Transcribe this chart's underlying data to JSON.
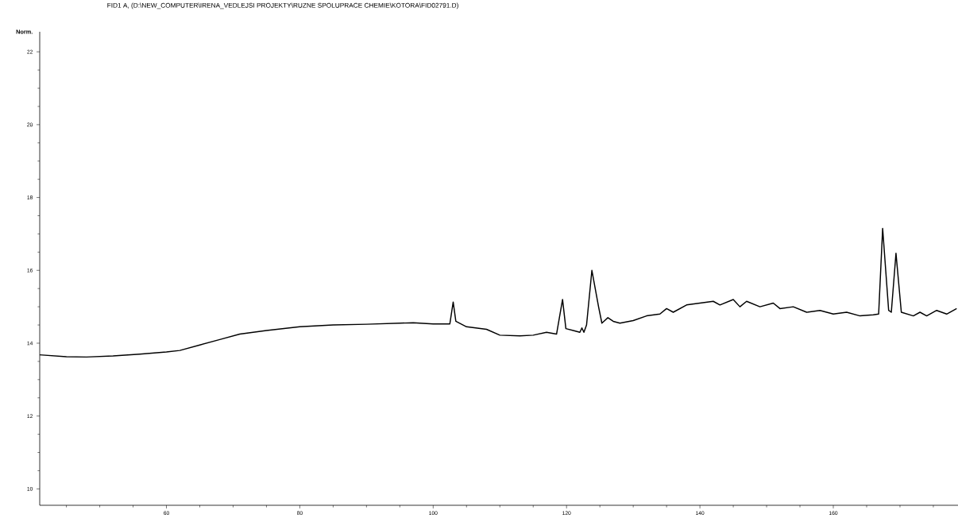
{
  "chart_data": {
    "type": "line",
    "title": "FID1 A,  (D:\\NEW_COMPUTER\\IRENA_VEDLEJSI PROJEKTY\\RUZNE SPOLUPRACE CHEMIE\\KOTORA\\FID02791.D)",
    "ylabel": "Norm.",
    "xlim": [
      41,
      178.7
    ],
    "ylim": [
      9.55,
      22.55
    ],
    "xticks": [
      {
        "value": 45,
        "label": null
      },
      {
        "value": 50,
        "label": null
      },
      {
        "value": 55,
        "label": null
      },
      60,
      {
        "value": 65,
        "label": null
      },
      {
        "value": 70,
        "label": null
      },
      {
        "value": 75,
        "label": null
      },
      80,
      {
        "value": 85,
        "label": null
      },
      {
        "value": 90,
        "label": null
      },
      {
        "value": 95,
        "label": null
      },
      100,
      {
        "value": 105,
        "label": null
      },
      {
        "value": 110,
        "label": null
      },
      {
        "value": 115,
        "label": null
      },
      120,
      {
        "value": 125,
        "label": null
      },
      {
        "value": 130,
        "label": null
      },
      {
        "value": 135,
        "label": null
      },
      140,
      {
        "value": 145,
        "label": null
      },
      {
        "value": 150,
        "label": null
      },
      {
        "value": 155,
        "label": null
      },
      160,
      {
        "value": 165,
        "label": null
      },
      {
        "value": 170,
        "label": null
      },
      {
        "value": 175,
        "label": null
      }
    ],
    "yticks": [
      10,
      {
        "value": 10.5,
        "label": null
      },
      {
        "value": 11,
        "label": null
      },
      {
        "value": 11.5,
        "label": null
      },
      12,
      {
        "value": 12.5,
        "label": null
      },
      {
        "value": 13,
        "label": null
      },
      {
        "value": 13.5,
        "label": null
      },
      14,
      {
        "value": 14.5,
        "label": null
      },
      {
        "value": 15,
        "label": null
      },
      {
        "value": 15.5,
        "label": null
      },
      16,
      {
        "value": 16.5,
        "label": null
      },
      {
        "value": 17,
        "label": null
      },
      {
        "value": 17.5,
        "label": null
      },
      18,
      {
        "value": 18.5,
        "label": null
      },
      {
        "value": 19,
        "label": null
      },
      {
        "value": 19.5,
        "label": null
      },
      20,
      {
        "value": 20.5,
        "label": null
      },
      {
        "value": 21,
        "label": null
      },
      {
        "value": 21.5,
        "label": null
      },
      22
    ],
    "grid": false,
    "marker": "none",
    "line_style": "solid",
    "series": [
      {
        "color": "#000000",
        "x": [
          41,
          45,
          48,
          52,
          56,
          60,
          62,
          65,
          68,
          71,
          75,
          80,
          85,
          90,
          95,
          97,
          100,
          102.5,
          103,
          103.4,
          105,
          108,
          110,
          113,
          115,
          117,
          118.5,
          119.4,
          119.9,
          121,
          122,
          122.3,
          122.6,
          123,
          123.8,
          124.8,
          125.3,
          126.2,
          127,
          128,
          130,
          132,
          134,
          135,
          136,
          138,
          140,
          142,
          143,
          145,
          146,
          147,
          149,
          151,
          152,
          154,
          156,
          158,
          160,
          162,
          164,
          166,
          166.8,
          167.4,
          168.3,
          168.7,
          169.4,
          170.2,
          172,
          173,
          174,
          175.5,
          177,
          178.5
        ],
        "values": [
          13.68,
          13.63,
          13.62,
          13.65,
          13.7,
          13.76,
          13.8,
          13.95,
          14.1,
          14.25,
          14.35,
          14.45,
          14.5,
          14.52,
          14.55,
          14.56,
          14.53,
          14.53,
          15.13,
          14.6,
          14.45,
          14.38,
          14.22,
          14.2,
          14.22,
          14.3,
          14.25,
          15.2,
          14.4,
          14.35,
          14.3,
          14.42,
          14.3,
          14.5,
          16.0,
          15.0,
          14.55,
          14.7,
          14.6,
          14.55,
          14.62,
          14.75,
          14.8,
          14.95,
          14.85,
          15.05,
          15.1,
          15.15,
          15.05,
          15.2,
          15.0,
          15.15,
          15.0,
          15.1,
          14.95,
          15.0,
          14.85,
          14.9,
          14.8,
          14.85,
          14.75,
          14.78,
          14.8,
          17.15,
          14.9,
          14.85,
          16.47,
          14.85,
          14.75,
          14.85,
          14.75,
          14.9,
          14.8,
          14.95
        ]
      }
    ]
  }
}
